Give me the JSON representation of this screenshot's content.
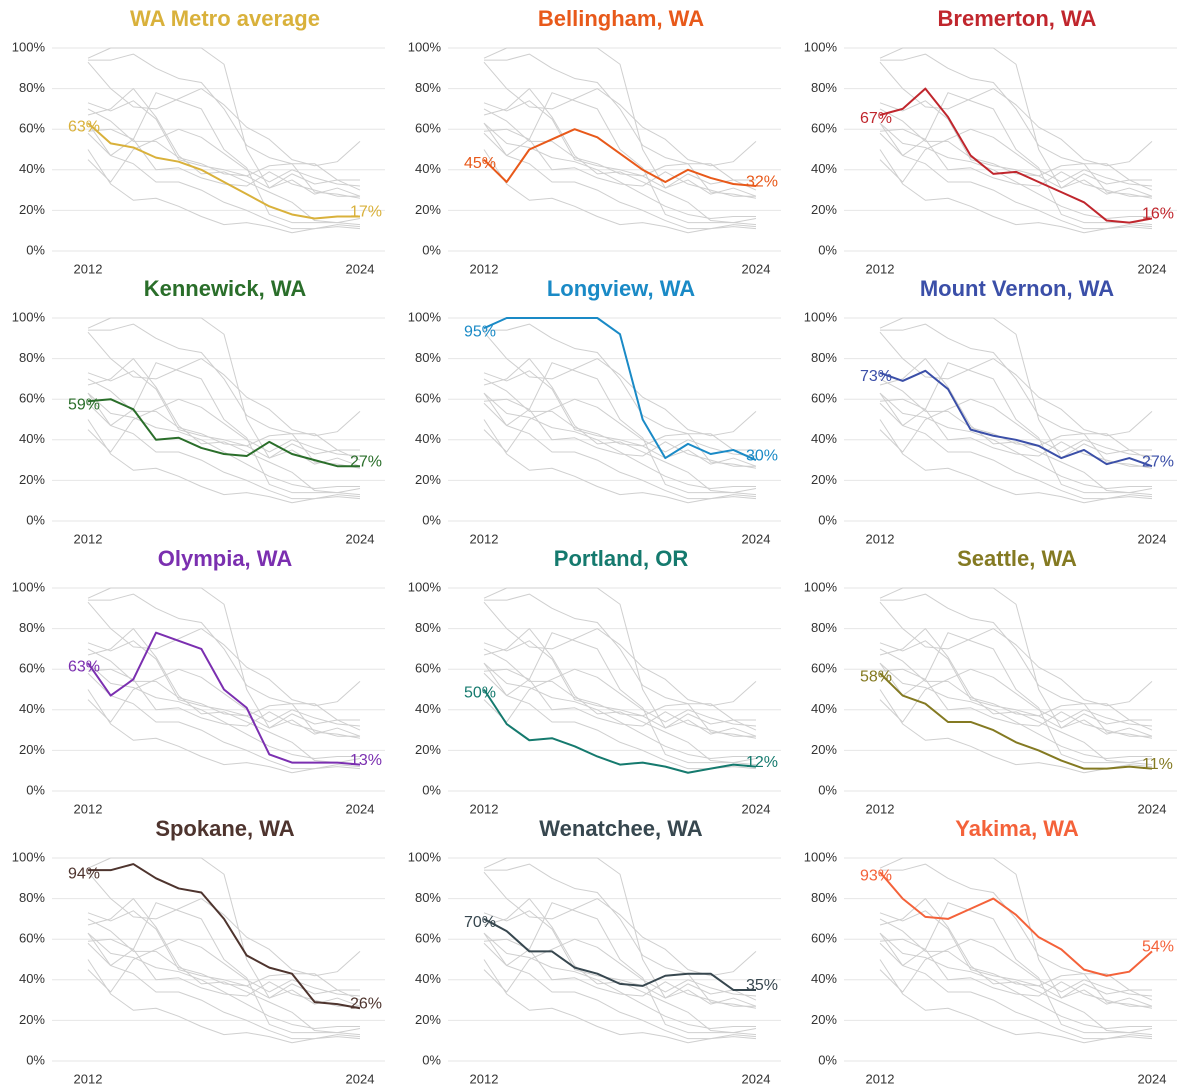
{
  "chart_data": {
    "type": "line",
    "small_multiples": true,
    "grid": true,
    "x": [
      2012,
      2013,
      2014,
      2015,
      2016,
      2017,
      2018,
      2019,
      2020,
      2021,
      2022,
      2023,
      2024
    ],
    "xlim": [
      2012,
      2024
    ],
    "xticks": [
      2012,
      2024
    ],
    "ylim": [
      0,
      100
    ],
    "yticks": [
      {
        "value": 0,
        "label": "0%"
      },
      {
        "value": 20,
        "label": "20%"
      },
      {
        "value": 40,
        "label": "40%"
      },
      {
        "value": 60,
        "label": "60%"
      },
      {
        "value": 80,
        "label": "80%"
      },
      {
        "value": 100,
        "label": "100%"
      }
    ],
    "series": [
      {
        "name": "WA Metro average",
        "color": "#d9b13b",
        "values": [
          63,
          53,
          51,
          46,
          44,
          40,
          34,
          28,
          22,
          18,
          16,
          17,
          17
        ],
        "value_labels": [
          "63%",
          null,
          null,
          null,
          null,
          null,
          null,
          null,
          null,
          null,
          null,
          null,
          "17%"
        ]
      },
      {
        "name": "Bellingham, WA",
        "color": "#e8591a",
        "values": [
          45,
          34,
          50,
          55,
          60,
          56,
          48,
          40,
          34,
          40,
          36,
          33,
          32
        ],
        "value_labels": [
          "45%",
          null,
          null,
          null,
          null,
          null,
          null,
          null,
          null,
          null,
          null,
          null,
          "32%"
        ]
      },
      {
        "name": "Bremerton, WA",
        "color": "#c0262d",
        "values": [
          67,
          70,
          80,
          66,
          47,
          38,
          39,
          34,
          29,
          24,
          15,
          14,
          16
        ],
        "value_labels": [
          "67%",
          null,
          null,
          null,
          null,
          null,
          null,
          null,
          null,
          null,
          null,
          null,
          "16%"
        ]
      },
      {
        "name": "Kennewick, WA",
        "color": "#2a6e2a",
        "values": [
          59,
          60,
          55,
          40,
          41,
          36,
          33,
          32,
          39,
          33,
          30,
          27,
          27
        ],
        "value_labels": [
          "59%",
          null,
          null,
          null,
          null,
          null,
          null,
          null,
          null,
          null,
          null,
          null,
          "27%"
        ]
      },
      {
        "name": "Longview, WA",
        "color": "#1a8ac6",
        "values": [
          95,
          100,
          100,
          100,
          100,
          100,
          92,
          50,
          31,
          38,
          33,
          35,
          30
        ],
        "value_labels": [
          "95%",
          null,
          null,
          null,
          null,
          null,
          null,
          null,
          null,
          null,
          null,
          null,
          "30%"
        ]
      },
      {
        "name": "Mount Vernon, WA",
        "color": "#3b4fa8",
        "values": [
          73,
          69,
          74,
          65,
          45,
          42,
          40,
          37,
          31,
          35,
          28,
          31,
          27
        ],
        "value_labels": [
          "73%",
          null,
          null,
          null,
          null,
          null,
          null,
          null,
          null,
          null,
          null,
          null,
          "27%"
        ]
      },
      {
        "name": "Olympia, WA",
        "color": "#7b2fb0",
        "values": [
          63,
          47,
          55,
          78,
          74,
          70,
          50,
          41,
          18,
          14,
          14,
          14,
          13
        ],
        "value_labels": [
          "63%",
          null,
          null,
          null,
          null,
          null,
          null,
          null,
          null,
          null,
          null,
          null,
          "13%"
        ]
      },
      {
        "name": "Portland, OR",
        "color": "#157a6e",
        "values": [
          50,
          33,
          25,
          26,
          22,
          17,
          13,
          14,
          12,
          9,
          11,
          13,
          12
        ],
        "value_labels": [
          "50%",
          null,
          null,
          null,
          null,
          null,
          null,
          null,
          null,
          null,
          null,
          null,
          "12%"
        ]
      },
      {
        "name": "Seattle, WA",
        "color": "#847a22",
        "values": [
          58,
          47,
          43,
          34,
          34,
          30,
          24,
          20,
          15,
          11,
          11,
          12,
          11
        ],
        "value_labels": [
          "58%",
          null,
          null,
          null,
          null,
          null,
          null,
          null,
          null,
          null,
          null,
          null,
          "11%"
        ]
      },
      {
        "name": "Spokane, WA",
        "color": "#4e342e",
        "values": [
          94,
          94,
          97,
          90,
          85,
          83,
          70,
          52,
          46,
          43,
          29,
          28,
          26
        ],
        "value_labels": [
          "94%",
          null,
          null,
          null,
          null,
          null,
          null,
          null,
          null,
          null,
          null,
          null,
          "26%"
        ]
      },
      {
        "name": "Wenatchee, WA",
        "color": "#37474f",
        "values": [
          70,
          64,
          54,
          54,
          46,
          43,
          38,
          37,
          42,
          43,
          43,
          35,
          35
        ],
        "value_labels": [
          "70%",
          null,
          null,
          null,
          null,
          null,
          null,
          null,
          null,
          null,
          null,
          null,
          "35%"
        ]
      },
      {
        "name": "Yakima, WA",
        "color": "#f4623a",
        "values": [
          93,
          80,
          71,
          70,
          75,
          80,
          72,
          61,
          55,
          45,
          42,
          44,
          54
        ],
        "value_labels": [
          "93%",
          null,
          null,
          null,
          null,
          null,
          null,
          null,
          null,
          null,
          null,
          null,
          "54%"
        ]
      }
    ]
  }
}
